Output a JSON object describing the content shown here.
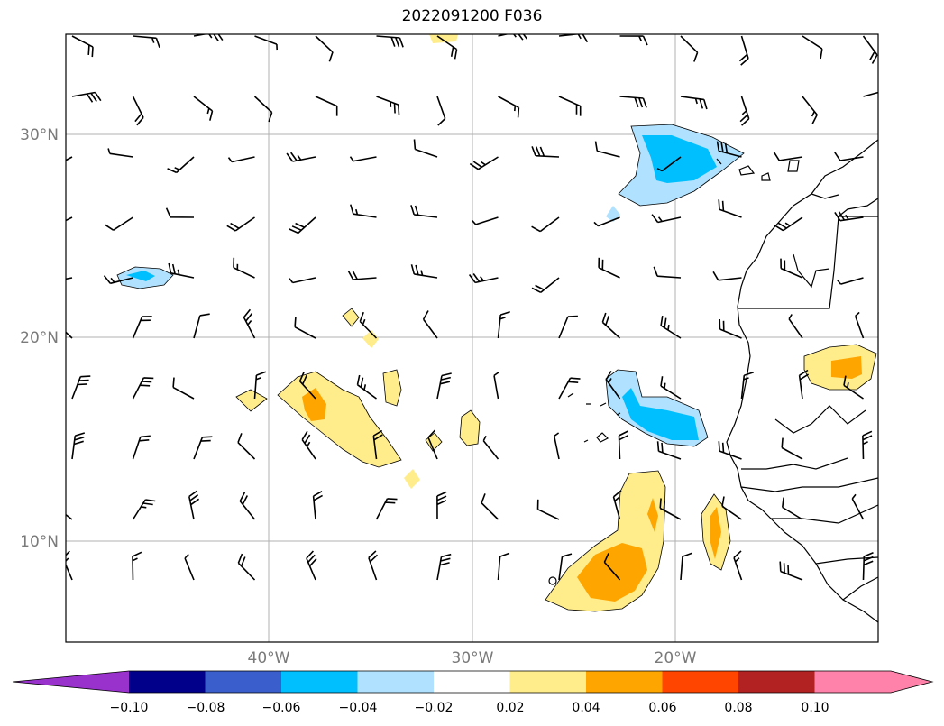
{
  "title": "2022091200 F036",
  "map": {
    "lat_labels": [
      "30°N",
      "20°N",
      "10°N"
    ],
    "lon_labels": [
      "40°W",
      "30°W",
      "20°W"
    ]
  },
  "colorbar": {
    "ticks": [
      "−0.10",
      "−0.08",
      "−0.06",
      "−0.04",
      "−0.02",
      "0.02",
      "0.04",
      "0.06",
      "0.08",
      "0.10"
    ],
    "colors": [
      "#9932cc",
      "#00008b",
      "#3a5fcd",
      "#00bfff",
      "#b0e2ff",
      "#ffffff",
      "#ffec8b",
      "#ffa500",
      "#ff4500",
      "#b22222",
      "#ff82ab"
    ]
  }
}
